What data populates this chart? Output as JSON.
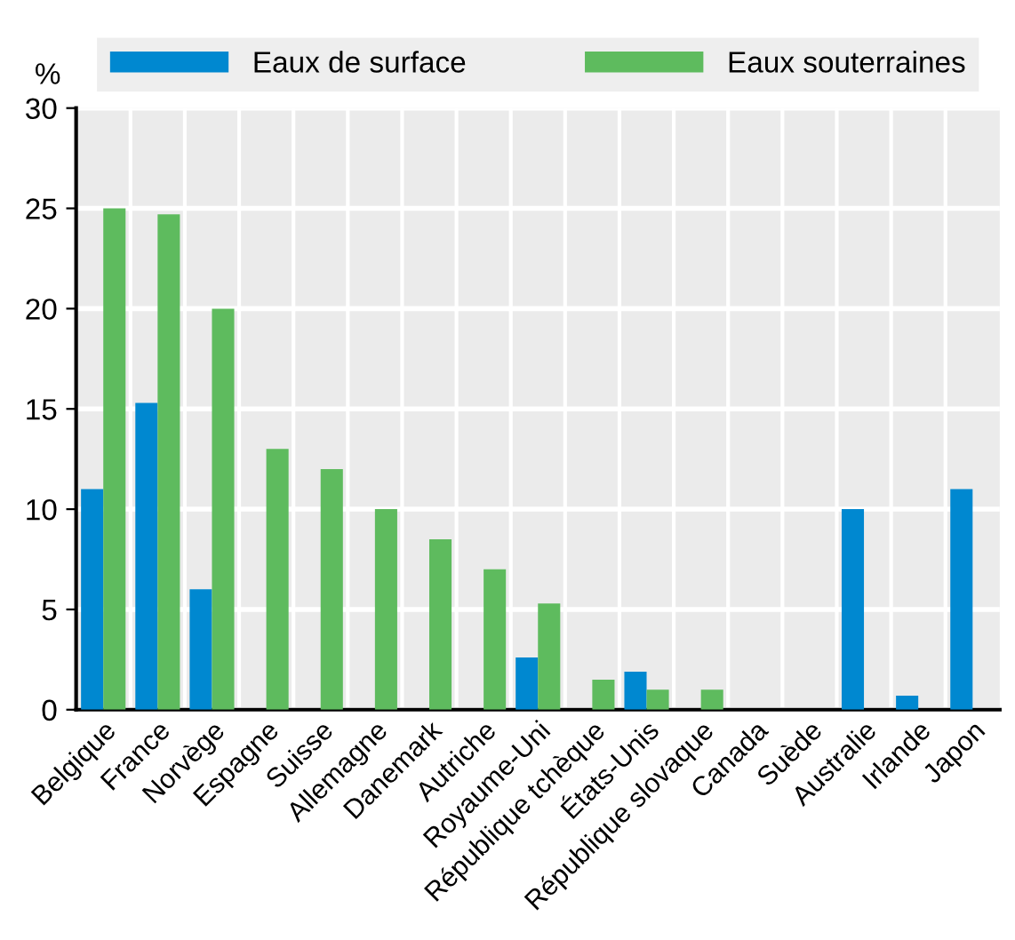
{
  "chart_data": {
    "type": "bar",
    "ylabel": "%",
    "categories": [
      "Belgique",
      "France",
      "Norvège",
      "Espagne",
      "Suisse",
      "Allemagne",
      "Danemark",
      "Autriche",
      "Royaume-Uni",
      "République tchèque",
      "États-Unis",
      "République slovaque",
      "Canada",
      "Suède",
      "Australie",
      "Irlande",
      "Japon"
    ],
    "series": [
      {
        "name": "Eaux de surface",
        "color": "#0088d0",
        "values": [
          11,
          15.3,
          6,
          null,
          null,
          null,
          null,
          null,
          2.6,
          null,
          1.9,
          null,
          null,
          null,
          10,
          0.7,
          11
        ]
      },
      {
        "name": "Eaux souterraines",
        "color": "#5ebb5e",
        "values": [
          25,
          24.7,
          20,
          13,
          12,
          10,
          8.5,
          7,
          5.3,
          1.5,
          1.0,
          1.0,
          null,
          null,
          null,
          null,
          null
        ]
      }
    ],
    "ylim": [
      0,
      30
    ],
    "yticks": [
      0,
      5,
      10,
      15,
      20,
      25,
      30
    ],
    "grid": true,
    "legend": "top"
  }
}
